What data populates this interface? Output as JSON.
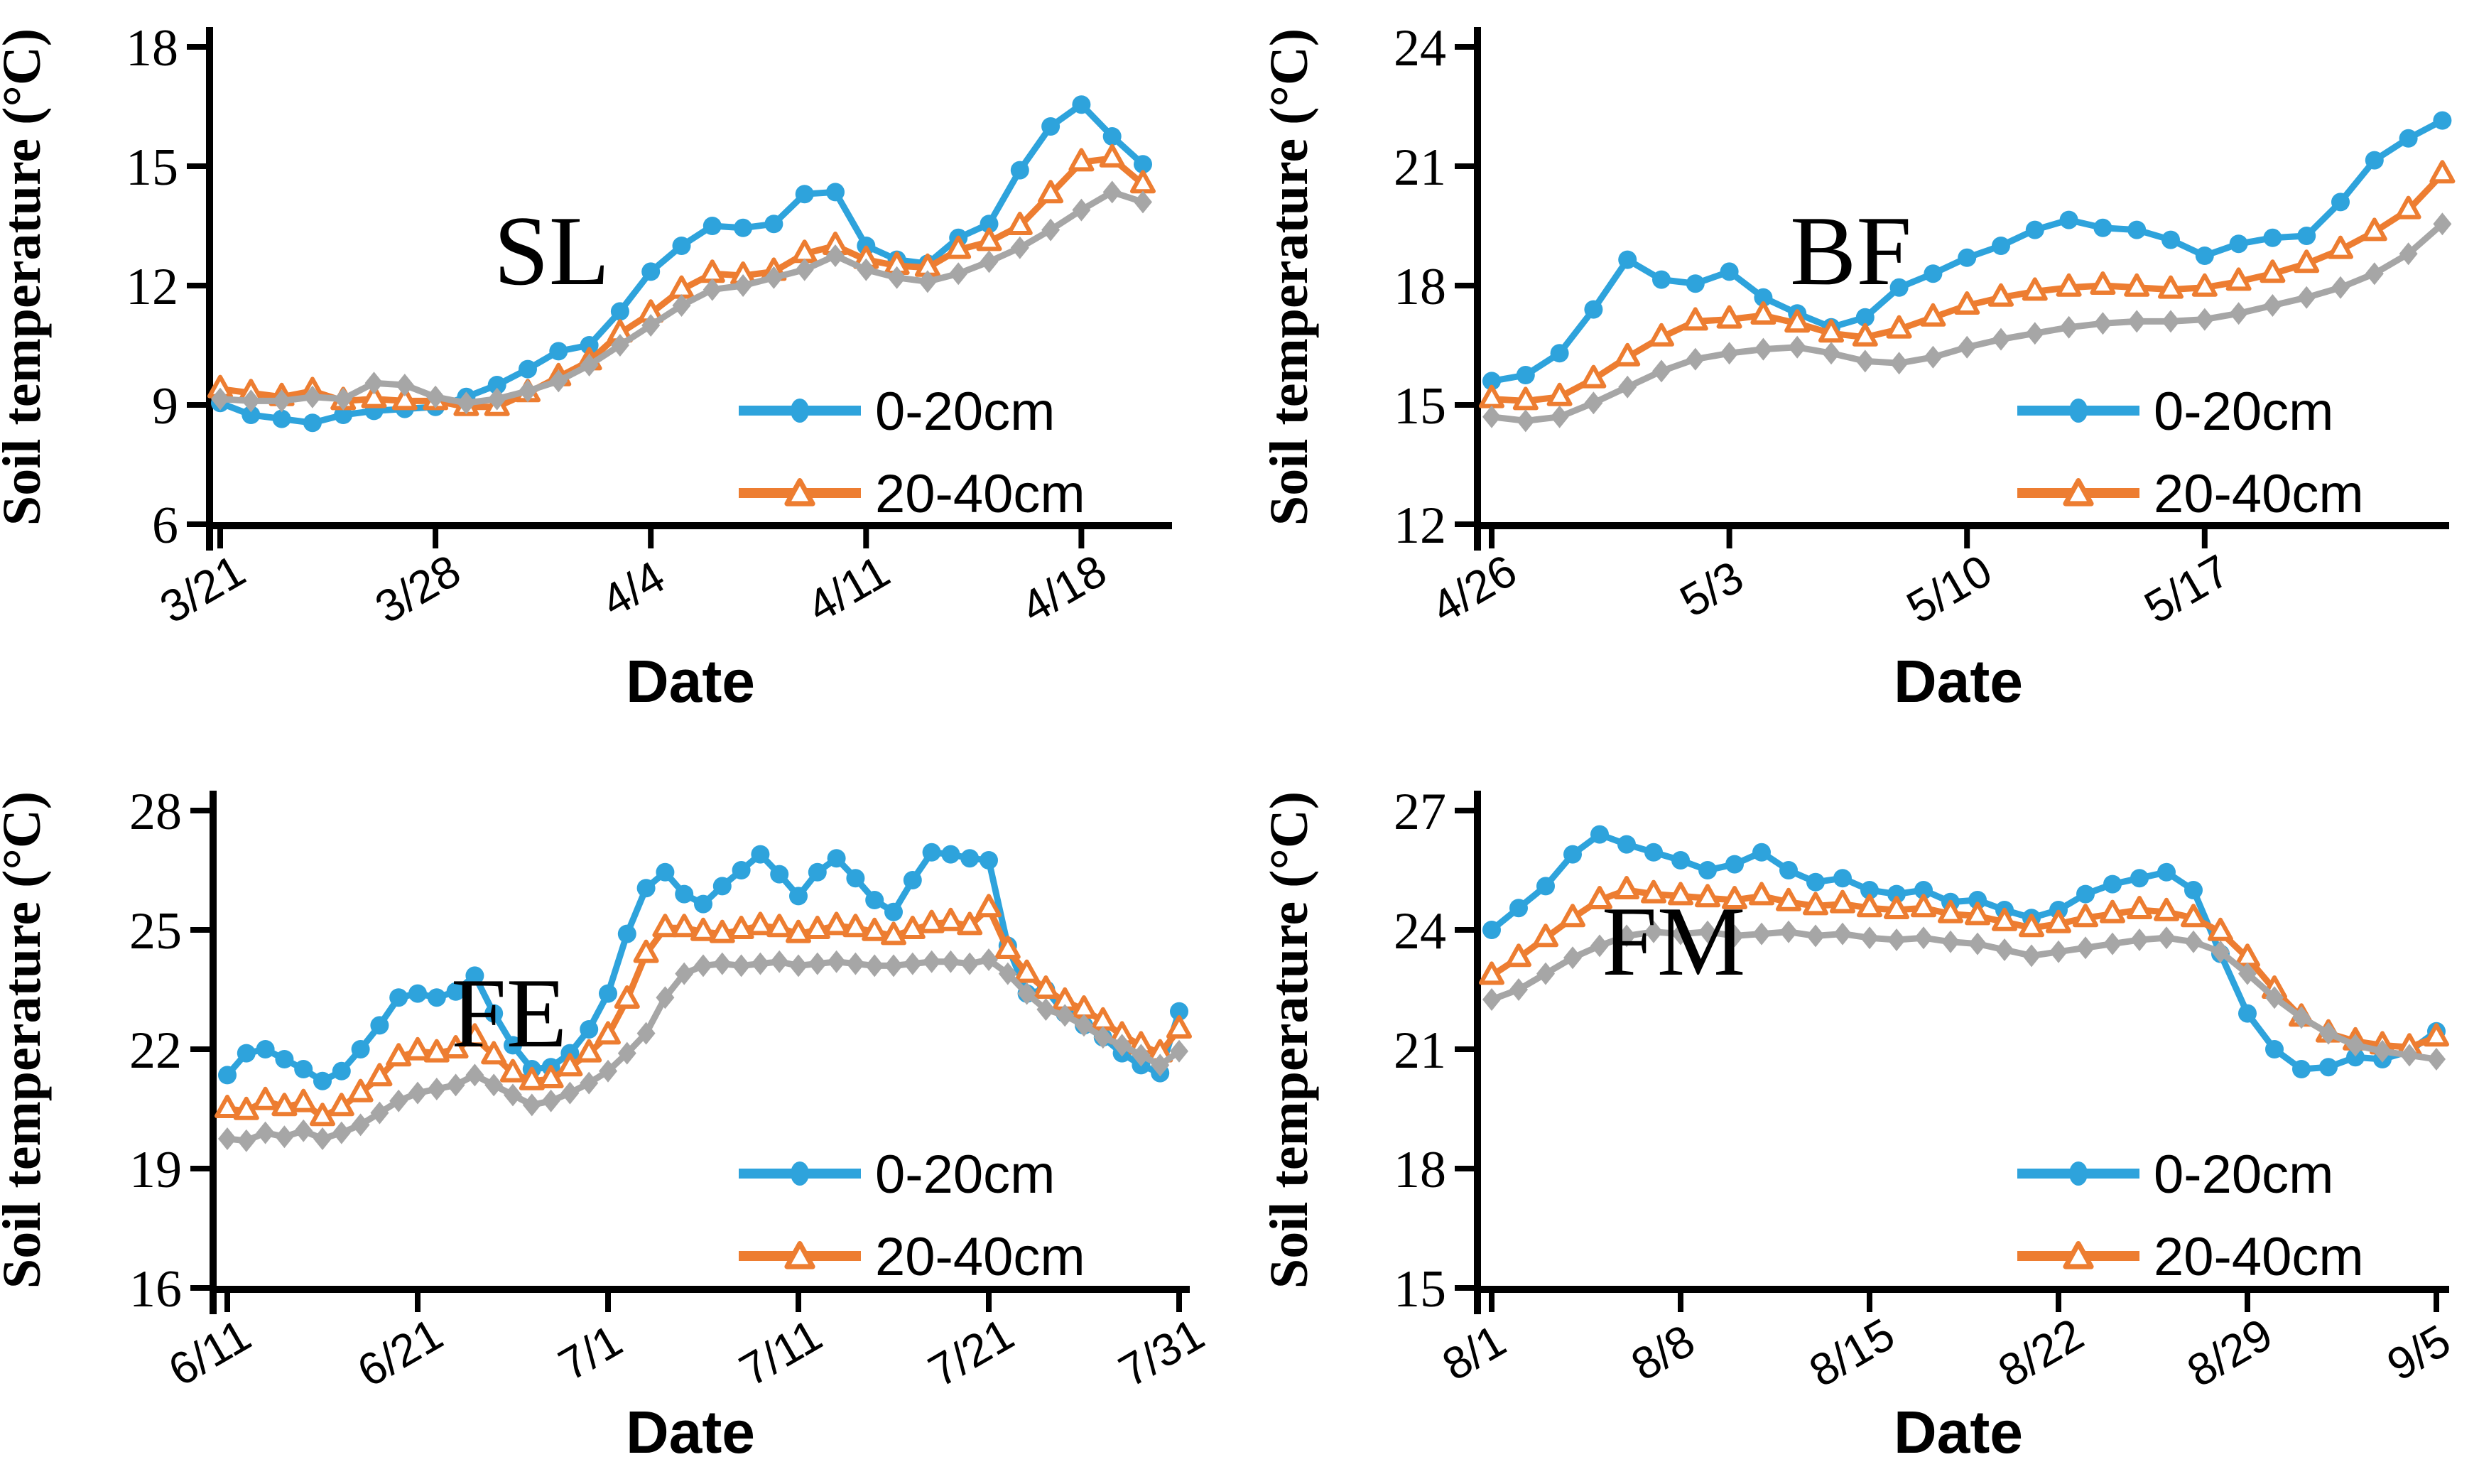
{
  "figure": {
    "background": "#FFFFFF",
    "axis_color": "#000000",
    "panel_letters": [
      "SL",
      "BF",
      "FE",
      "FM"
    ]
  },
  "chart_data": [
    {
      "type": "line",
      "panel_label": "SL",
      "ylabel": "Soil temperature (°C)",
      "xlabel": "Date",
      "ylim": [
        6,
        18
      ],
      "y_ticks": [
        18,
        15,
        12,
        9,
        6
      ],
      "x_tick_labels": [
        "3/21",
        "3/28",
        "4/4",
        "4/11",
        "4/18"
      ],
      "grid": false,
      "legend": [
        "0-20cm",
        "20-40cm"
      ],
      "legend_position": "inside lower right",
      "x": [
        "3/21",
        "3/22",
        "3/23",
        "3/24",
        "3/25",
        "3/26",
        "3/27",
        "3/28",
        "3/29",
        "3/30",
        "3/31",
        "4/1",
        "4/2",
        "4/3",
        "4/4",
        "4/5",
        "4/6",
        "4/7",
        "4/8",
        "4/9",
        "4/10",
        "4/11",
        "4/12",
        "4/13",
        "4/14",
        "4/15",
        "4/16",
        "4/17",
        "4/18",
        "4/19",
        "4/20"
      ],
      "series": [
        {
          "name": "0-20cm",
          "marker": "circle",
          "color": "#2EA3DC",
          "in_legend": true,
          "values": [
            9.05,
            8.75,
            8.65,
            8.55,
            8.75,
            8.85,
            8.9,
            8.95,
            9.2,
            9.5,
            9.9,
            10.35,
            10.5,
            11.35,
            12.35,
            13.0,
            13.5,
            13.45,
            13.55,
            14.3,
            14.35,
            13.0,
            12.65,
            12.55,
            13.2,
            13.55,
            14.9,
            16.0,
            16.55,
            15.75,
            15.05
          ]
        },
        {
          "name": "20-40cm",
          "marker": "open-triangle",
          "color": "#ED7D31",
          "in_legend": true,
          "values": [
            9.4,
            9.3,
            9.2,
            9.35,
            9.1,
            9.15,
            9.1,
            9.1,
            8.95,
            8.95,
            9.3,
            9.7,
            10.1,
            10.8,
            11.3,
            11.9,
            12.3,
            12.25,
            12.35,
            12.8,
            13.0,
            12.65,
            12.5,
            12.45,
            12.9,
            13.1,
            13.5,
            14.3,
            15.1,
            15.2,
            14.55
          ]
        },
        {
          "name": "",
          "marker": "diamond",
          "color": "#A6A6A6",
          "in_legend": false,
          "values": [
            9.15,
            9.1,
            9.1,
            9.2,
            9.15,
            9.55,
            9.5,
            9.2,
            9.05,
            9.15,
            9.35,
            9.6,
            10.0,
            10.5,
            11.0,
            11.5,
            11.9,
            12.0,
            12.2,
            12.4,
            12.75,
            12.4,
            12.2,
            12.1,
            12.3,
            12.6,
            12.95,
            13.4,
            13.9,
            14.35,
            14.1
          ]
        }
      ]
    },
    {
      "type": "line",
      "panel_label": "BF",
      "ylabel": "Soil temperature (°C)",
      "xlabel": "Date",
      "ylim": [
        12,
        24
      ],
      "y_ticks": [
        24,
        21,
        18,
        15,
        12
      ],
      "x_tick_labels": [
        "4/26",
        "5/3",
        "5/10",
        "5/17"
      ],
      "grid": false,
      "legend": [
        "0-20cm",
        "20-40cm"
      ],
      "legend_position": "inside lower right",
      "x": [
        "4/26",
        "4/27",
        "4/28",
        "4/29",
        "4/30",
        "5/1",
        "5/2",
        "5/3",
        "5/4",
        "5/5",
        "5/6",
        "5/7",
        "5/8",
        "5/9",
        "5/10",
        "5/11",
        "5/12",
        "5/13",
        "5/14",
        "5/15",
        "5/16",
        "5/17",
        "5/18",
        "5/19",
        "5/20",
        "5/21",
        "5/22",
        "5/23",
        "5/24"
      ],
      "series": [
        {
          "name": "0-20cm",
          "marker": "circle",
          "color": "#2EA3DC",
          "in_legend": true,
          "values": [
            15.6,
            15.75,
            16.3,
            17.4,
            18.65,
            18.15,
            18.05,
            18.35,
            17.7,
            17.3,
            16.95,
            17.2,
            17.95,
            18.3,
            18.7,
            19.0,
            19.4,
            19.65,
            19.45,
            19.4,
            19.15,
            18.75,
            19.05,
            19.2,
            19.25,
            20.1,
            21.15,
            21.7,
            22.15
          ]
        },
        {
          "name": "20-40cm",
          "marker": "open-triangle",
          "color": "#ED7D31",
          "in_legend": true,
          "values": [
            15.15,
            15.1,
            15.2,
            15.65,
            16.2,
            16.7,
            17.1,
            17.15,
            17.25,
            17.05,
            16.8,
            16.7,
            16.9,
            17.2,
            17.5,
            17.7,
            17.85,
            17.95,
            18.0,
            17.95,
            17.9,
            17.95,
            18.1,
            18.3,
            18.55,
            18.9,
            19.35,
            19.9,
            20.8
          ]
        },
        {
          "name": "",
          "marker": "diamond",
          "color": "#A6A6A6",
          "in_legend": false,
          "values": [
            14.7,
            14.6,
            14.7,
            15.05,
            15.45,
            15.85,
            16.15,
            16.3,
            16.4,
            16.45,
            16.3,
            16.1,
            16.05,
            16.2,
            16.45,
            16.65,
            16.8,
            16.95,
            17.05,
            17.1,
            17.1,
            17.15,
            17.3,
            17.5,
            17.7,
            17.95,
            18.3,
            18.8,
            19.55
          ]
        }
      ]
    },
    {
      "type": "line",
      "panel_label": "FE",
      "ylabel": "Soil temperature (°C)",
      "xlabel": "Date",
      "ylim": [
        16,
        28
      ],
      "y_ticks": [
        28,
        25,
        22,
        19,
        16
      ],
      "x_tick_labels": [
        "6/11",
        "6/21",
        "7/1",
        "7/11",
        "7/21",
        "7/31"
      ],
      "grid": false,
      "legend": [
        "0-20cm",
        "20-40cm"
      ],
      "legend_position": "inside lower right",
      "x": [
        "6/11",
        "6/12",
        "6/13",
        "6/14",
        "6/15",
        "6/16",
        "6/17",
        "6/18",
        "6/19",
        "6/20",
        "6/21",
        "6/22",
        "6/23",
        "6/24",
        "6/25",
        "6/26",
        "6/27",
        "6/28",
        "6/29",
        "6/30",
        "7/1",
        "7/2",
        "7/3",
        "7/4",
        "7/5",
        "7/6",
        "7/7",
        "7/8",
        "7/9",
        "7/10",
        "7/11",
        "7/12",
        "7/13",
        "7/14",
        "7/15",
        "7/16",
        "7/17",
        "7/18",
        "7/19",
        "7/20",
        "7/21",
        "7/22",
        "7/23",
        "7/24",
        "7/25",
        "7/26",
        "7/27",
        "7/28",
        "7/29",
        "7/30",
        "7/31"
      ],
      "series": [
        {
          "name": "0-20cm",
          "marker": "circle",
          "color": "#2EA3DC",
          "in_legend": true,
          "values": [
            21.35,
            21.9,
            22.0,
            21.75,
            21.5,
            21.2,
            21.45,
            22.0,
            22.6,
            23.3,
            23.4,
            23.3,
            23.45,
            23.85,
            22.9,
            22.1,
            21.5,
            21.55,
            21.9,
            22.5,
            23.4,
            24.9,
            26.05,
            26.45,
            25.9,
            25.65,
            26.1,
            26.5,
            26.9,
            26.4,
            25.85,
            26.45,
            26.8,
            26.3,
            25.75,
            25.45,
            26.25,
            26.95,
            26.9,
            26.8,
            26.75,
            24.6,
            23.4,
            23.5,
            22.9,
            22.6,
            22.3,
            21.9,
            21.6,
            21.4,
            22.95
          ]
        },
        {
          "name": "20-40cm",
          "marker": "open-triangle",
          "color": "#ED7D31",
          "in_legend": true,
          "values": [
            20.5,
            20.45,
            20.7,
            20.55,
            20.65,
            20.3,
            20.55,
            20.9,
            21.3,
            21.8,
            21.95,
            21.9,
            22.0,
            22.3,
            21.85,
            21.4,
            21.2,
            21.25,
            21.55,
            21.9,
            22.35,
            23.25,
            24.4,
            25.05,
            25.05,
            24.95,
            24.9,
            25.0,
            25.1,
            25.05,
            24.9,
            25.0,
            25.1,
            25.05,
            24.95,
            24.85,
            25.0,
            25.15,
            25.2,
            25.1,
            25.55,
            24.5,
            23.9,
            23.5,
            23.2,
            23.0,
            22.7,
            22.35,
            22.1,
            21.9,
            22.5
          ]
        },
        {
          "name": "",
          "marker": "diamond",
          "color": "#A6A6A6",
          "in_legend": false,
          "values": [
            19.75,
            19.7,
            19.9,
            19.8,
            19.95,
            19.75,
            19.9,
            20.1,
            20.4,
            20.7,
            20.9,
            21.0,
            21.1,
            21.35,
            21.1,
            20.85,
            20.6,
            20.7,
            20.9,
            21.15,
            21.45,
            21.9,
            22.4,
            23.3,
            23.9,
            24.1,
            24.15,
            24.1,
            24.15,
            24.2,
            24.1,
            24.15,
            24.2,
            24.15,
            24.1,
            24.1,
            24.15,
            24.2,
            24.2,
            24.15,
            24.25,
            23.9,
            23.4,
            23.0,
            22.85,
            22.6,
            22.3,
            22.1,
            21.85,
            21.6,
            21.95
          ]
        }
      ]
    },
    {
      "type": "line",
      "panel_label": "FM",
      "ylabel": "Soil temperature (°C)",
      "xlabel": "Date",
      "ylim": [
        15,
        27
      ],
      "y_ticks": [
        27,
        24,
        21,
        18,
        15
      ],
      "x_tick_labels": [
        "8/1",
        "8/8",
        "8/15",
        "8/22",
        "8/29",
        "9/5"
      ],
      "grid": false,
      "legend": [
        "0-20cm",
        "20-40cm"
      ],
      "legend_position": "inside lower right",
      "x": [
        "8/1",
        "8/2",
        "8/3",
        "8/4",
        "8/5",
        "8/6",
        "8/7",
        "8/8",
        "8/9",
        "8/10",
        "8/11",
        "8/12",
        "8/13",
        "8/14",
        "8/15",
        "8/16",
        "8/17",
        "8/18",
        "8/19",
        "8/20",
        "8/21",
        "8/22",
        "8/23",
        "8/24",
        "8/25",
        "8/26",
        "8/27",
        "8/28",
        "8/29",
        "8/30",
        "8/31",
        "9/1",
        "9/2",
        "9/3",
        "9/4",
        "9/5"
      ],
      "series": [
        {
          "name": "0-20cm",
          "marker": "circle",
          "color": "#2EA3DC",
          "in_legend": true,
          "values": [
            24.0,
            24.55,
            25.1,
            25.9,
            26.4,
            26.15,
            25.95,
            25.75,
            25.5,
            25.65,
            25.95,
            25.5,
            25.2,
            25.3,
            25.0,
            24.9,
            25.0,
            24.7,
            24.75,
            24.5,
            24.3,
            24.5,
            24.9,
            25.15,
            25.3,
            25.45,
            25.0,
            23.4,
            21.9,
            21.0,
            20.5,
            20.55,
            20.8,
            20.75,
            20.95,
            21.45
          ]
        },
        {
          "name": "20-40cm",
          "marker": "open-triangle",
          "color": "#ED7D31",
          "in_legend": true,
          "values": [
            22.85,
            23.3,
            23.8,
            24.3,
            24.75,
            25.0,
            24.9,
            24.85,
            24.8,
            24.75,
            24.85,
            24.7,
            24.6,
            24.65,
            24.55,
            24.5,
            24.55,
            24.4,
            24.35,
            24.2,
            24.05,
            24.15,
            24.3,
            24.4,
            24.5,
            24.45,
            24.3,
            23.95,
            23.3,
            22.5,
            21.8,
            21.4,
            21.2,
            21.1,
            21.05,
            21.3
          ]
        },
        {
          "name": "",
          "marker": "diamond",
          "color": "#A6A6A6",
          "in_legend": false,
          "values": [
            22.25,
            22.5,
            22.9,
            23.3,
            23.6,
            23.85,
            23.95,
            23.9,
            23.95,
            23.85,
            23.9,
            23.95,
            23.85,
            23.9,
            23.8,
            23.75,
            23.8,
            23.7,
            23.65,
            23.5,
            23.35,
            23.45,
            23.55,
            23.65,
            23.75,
            23.8,
            23.7,
            23.45,
            22.9,
            22.3,
            21.8,
            21.4,
            21.1,
            20.95,
            20.85,
            20.75
          ]
        }
      ]
    }
  ]
}
